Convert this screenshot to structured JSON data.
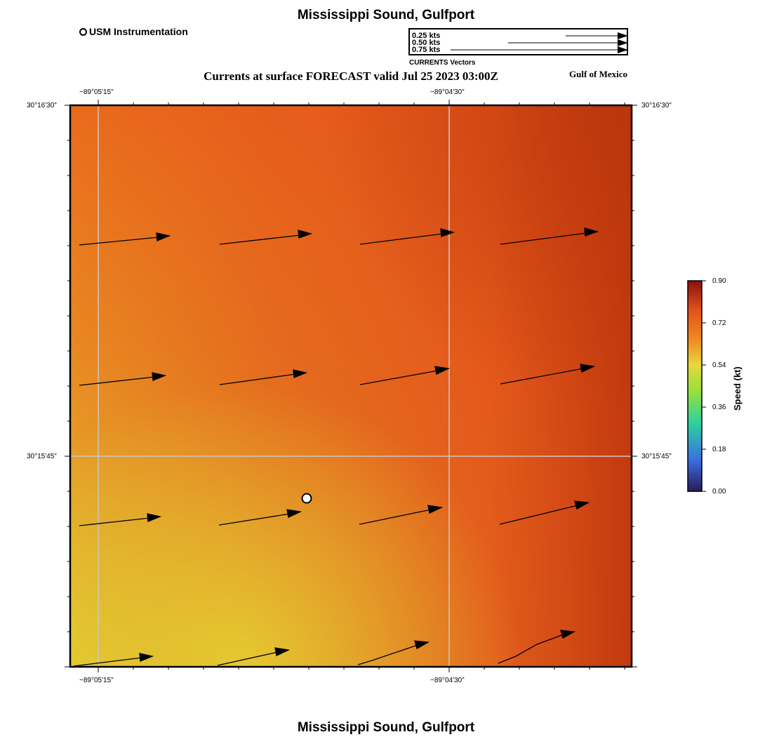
{
  "header": {
    "title": "Mississippi Sound, Gulfport",
    "subtitle": "Currents at surface FORECAST valid Jul 25 2023 03:00Z",
    "region_label": "Gulf of Mexico"
  },
  "footer": {
    "title": "Mississippi Sound, Gulfport"
  },
  "station_legend": {
    "label": "USM Instrumentation",
    "icon": "open-circle-icon"
  },
  "vector_legend": {
    "caption": "CURRENTS Vectors",
    "entries": [
      {
        "label": "0.25 kts",
        "speed": 0.25
      },
      {
        "label": "0.50 kts",
        "speed": 0.5
      },
      {
        "label": "0.75 kts",
        "speed": 0.75
      }
    ]
  },
  "map": {
    "lon_ticks": [
      "−89°05'15\"",
      "−89°04'30\""
    ],
    "lat_ticks": [
      "30°16'30\"",
      "30°15'45\""
    ],
    "station_marker": {
      "name": "USM Instrumentation",
      "lon": -89.0804,
      "lat": 30.261
    }
  },
  "colorbar": {
    "title": "Speed (kt)",
    "ticks": [
      "0.90",
      "0.72",
      "0.54",
      "0.36",
      "0.18",
      "0.00"
    ],
    "min": 0.0,
    "max": 0.9,
    "colors": [
      "#2b1a5a",
      "#3a6fe0",
      "#2cd0a0",
      "#9ae03a",
      "#e6d83a",
      "#f08a22",
      "#e2531a",
      "#8a1010"
    ]
  }
}
